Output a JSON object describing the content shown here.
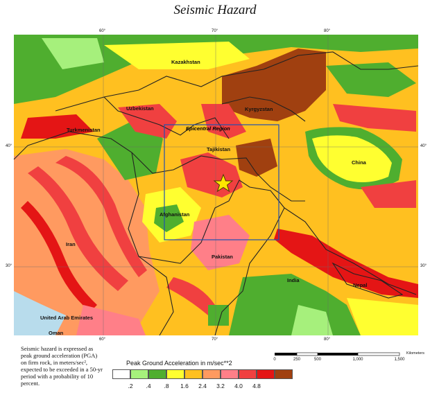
{
  "title": "Seismic Hazard",
  "colors": {
    "c02": "#ffffff",
    "c04": "#a6f07c",
    "c08": "#4fae2f",
    "c16": "#ffff30",
    "c24": "#ffc020",
    "c32": "#ff9a60",
    "c40": "#ff7f88",
    "c48": "#f04040",
    "c60": "#e41515",
    "c70": "#a04010",
    "water": "#b8dcec",
    "border": "#222222",
    "box": "#2050b0",
    "grid": "#6a6a6a"
  },
  "map": {
    "longitude_labels": [
      "60°",
      "70°",
      "80°"
    ],
    "latitude_labels": [
      "40°",
      "30°"
    ],
    "countries": [
      "Kazakhstan",
      "Uzbekistan",
      "Kyrgyzstan",
      "Turkmenistan",
      "Tajikistan",
      "China",
      "Afghanistan",
      "Iran",
      "Pakistan",
      "India",
      "Nepal",
      "United Arab Emirates",
      "Oman"
    ],
    "region_label": "Epicentral Region"
  },
  "note": "Seismic hazard is expressed as peak ground acceleration (PGA) on firm rock, in meters/sec², expected to be exceeded in a 50-yr period with a probability of 10 percent.",
  "legend": {
    "title": "Peak Ground Acceleration in m/sec**2",
    "labels": [
      ".2",
      ".4",
      ".8",
      "1.6",
      "2.4",
      "3.2",
      "4.0",
      "4.8"
    ]
  },
  "scale": {
    "ticks": [
      "0",
      "250",
      "500",
      "1,000",
      "1,500"
    ],
    "unit": "Kilometers"
  }
}
